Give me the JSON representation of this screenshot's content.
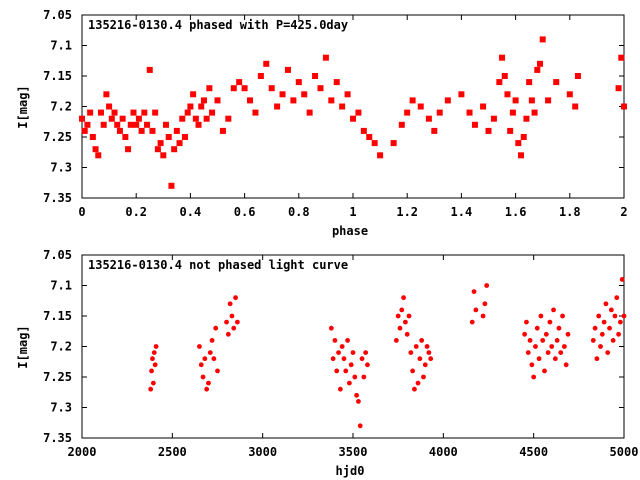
{
  "chart_data": [
    {
      "type": "scatter",
      "title": "135216-0130.4 phased with P=425.0day",
      "xlabel": "phase",
      "ylabel": "I[mag]",
      "xlim": [
        0,
        2
      ],
      "ylim": [
        7.35,
        7.05
      ],
      "y_inverted": true,
      "xticks": [
        "0",
        "0.2",
        "0.4",
        "0.6",
        "0.8",
        "1",
        "1.2",
        "1.4",
        "1.6",
        "1.8",
        "2"
      ],
      "yticks": [
        "7.05",
        "7.1",
        "7.15",
        "7.2",
        "7.25",
        "7.3",
        "7.35"
      ],
      "marker": "filled-square",
      "color": "#ff0000",
      "grid": false,
      "series": [
        {
          "x": [
            0.0,
            0.01,
            0.02,
            0.03,
            0.04,
            0.05,
            0.06,
            0.07,
            0.08,
            0.09,
            0.1,
            0.11,
            0.12,
            0.13,
            0.14,
            0.15,
            0.16,
            0.17,
            0.18,
            0.19,
            0.2,
            0.21,
            0.22,
            0.23,
            0.24,
            0.25,
            0.26,
            0.27,
            0.28,
            0.29,
            0.3,
            0.31,
            0.32,
            0.33,
            0.34,
            0.35,
            0.36,
            0.37,
            0.38,
            0.39,
            0.4,
            0.41,
            0.42,
            0.43,
            0.44,
            0.45,
            0.46,
            0.47,
            0.48,
            0.5,
            0.52,
            0.54,
            0.56,
            0.58,
            0.6,
            0.62,
            0.64,
            0.66,
            0.68,
            0.7,
            0.72,
            0.74,
            0.76,
            0.78,
            0.8,
            0.82,
            0.84,
            0.86,
            0.88,
            0.9,
            0.92,
            0.94,
            0.96,
            0.98,
            1.0,
            1.02,
            1.04,
            1.06,
            1.08,
            1.1,
            1.15,
            1.18,
            1.2,
            1.22,
            1.25,
            1.28,
            1.3,
            1.32,
            1.35,
            1.4,
            1.43,
            1.45,
            1.48,
            1.5,
            1.52,
            1.54,
            1.55,
            1.56,
            1.57,
            1.58,
            1.59,
            1.6,
            1.61,
            1.62,
            1.63,
            1.64,
            1.65,
            1.66,
            1.67,
            1.68,
            1.69,
            1.7,
            1.72,
            1.75,
            1.8,
            1.82,
            1.83,
            1.98,
            1.99,
            2.0
          ],
          "y": [
            7.22,
            7.24,
            7.23,
            7.21,
            7.25,
            7.27,
            7.28,
            7.21,
            7.23,
            7.18,
            7.2,
            7.22,
            7.21,
            7.23,
            7.24,
            7.22,
            7.25,
            7.27,
            7.23,
            7.21,
            7.23,
            7.22,
            7.24,
            7.21,
            7.23,
            7.14,
            7.24,
            7.21,
            7.27,
            7.26,
            7.28,
            7.23,
            7.25,
            7.33,
            7.27,
            7.24,
            7.26,
            7.22,
            7.25,
            7.21,
            7.2,
            7.18,
            7.22,
            7.23,
            7.2,
            7.19,
            7.22,
            7.17,
            7.21,
            7.19,
            7.24,
            7.22,
            7.17,
            7.16,
            7.17,
            7.19,
            7.21,
            7.15,
            7.13,
            7.17,
            7.2,
            7.18,
            7.14,
            7.19,
            7.16,
            7.18,
            7.21,
            7.15,
            7.17,
            7.12,
            7.19,
            7.16,
            7.2,
            7.18,
            7.22,
            7.21,
            7.24,
            7.25,
            7.26,
            7.28,
            7.26,
            7.23,
            7.21,
            7.19,
            7.2,
            7.22,
            7.24,
            7.21,
            7.19,
            7.18,
            7.21,
            7.23,
            7.2,
            7.24,
            7.22,
            7.16,
            7.12,
            7.15,
            7.18,
            7.24,
            7.21,
            7.19,
            7.26,
            7.28,
            7.25,
            7.22,
            7.16,
            7.19,
            7.21,
            7.14,
            7.13,
            7.09,
            7.19,
            7.16,
            7.18,
            7.2,
            7.15,
            7.17,
            7.12,
            7.2
          ]
        }
      ]
    },
    {
      "type": "scatter",
      "title": "135216-0130.4 not phased light curve",
      "xlabel": "hjd0",
      "ylabel": "I[mag]",
      "xlim": [
        2000,
        5000
      ],
      "ylim": [
        7.35,
        7.05
      ],
      "y_inverted": true,
      "xticks": [
        "2000",
        "2500",
        "3000",
        "3500",
        "4000",
        "4500",
        "5000"
      ],
      "yticks": [
        "7.05",
        "7.1",
        "7.15",
        "7.2",
        "7.25",
        "7.3",
        "7.35"
      ],
      "marker": "small-dot",
      "color": "#ff0000",
      "grid": false,
      "series": [
        {
          "x": [
            2380,
            2385,
            2390,
            2395,
            2400,
            2405,
            2410,
            2650,
            2660,
            2670,
            2680,
            2690,
            2700,
            2710,
            2720,
            2730,
            2740,
            2750,
            2800,
            2810,
            2820,
            2830,
            2840,
            2850,
            2860,
            3380,
            3390,
            3400,
            3410,
            3420,
            3430,
            3440,
            3450,
            3460,
            3470,
            3480,
            3490,
            3500,
            3510,
            3520,
            3530,
            3540,
            3550,
            3560,
            3570,
            3580,
            3740,
            3750,
            3760,
            3770,
            3780,
            3790,
            3800,
            3810,
            3820,
            3830,
            3840,
            3850,
            3860,
            3870,
            3880,
            3890,
            3900,
            3910,
            3920,
            3930,
            4160,
            4170,
            4180,
            4220,
            4230,
            4240,
            4450,
            4460,
            4470,
            4480,
            4490,
            4500,
            4510,
            4520,
            4530,
            4540,
            4550,
            4560,
            4570,
            4580,
            4590,
            4600,
            4610,
            4620,
            4630,
            4640,
            4650,
            4660,
            4670,
            4680,
            4690,
            4830,
            4840,
            4850,
            4860,
            4870,
            4880,
            4890,
            4900,
            4910,
            4920,
            4930,
            4940,
            4950,
            4960,
            4970,
            4980,
            4990,
            5000
          ],
          "y": [
            7.27,
            7.24,
            7.22,
            7.26,
            7.21,
            7.23,
            7.2,
            7.2,
            7.23,
            7.25,
            7.22,
            7.27,
            7.26,
            7.21,
            7.19,
            7.22,
            7.17,
            7.24,
            7.16,
            7.18,
            7.13,
            7.15,
            7.17,
            7.12,
            7.16,
            7.17,
            7.22,
            7.19,
            7.24,
            7.21,
            7.27,
            7.2,
            7.22,
            7.24,
            7.19,
            7.26,
            7.23,
            7.21,
            7.25,
            7.28,
            7.29,
            7.33,
            7.22,
            7.25,
            7.21,
            7.23,
            7.19,
            7.15,
            7.17,
            7.14,
            7.12,
            7.16,
            7.18,
            7.15,
            7.21,
            7.24,
            7.27,
            7.2,
            7.26,
            7.22,
            7.19,
            7.25,
            7.23,
            7.2,
            7.21,
            7.22,
            7.16,
            7.11,
            7.14,
            7.15,
            7.13,
            7.1,
            7.18,
            7.16,
            7.21,
            7.19,
            7.23,
            7.25,
            7.2,
            7.17,
            7.22,
            7.15,
            7.19,
            7.24,
            7.18,
            7.21,
            7.16,
            7.2,
            7.14,
            7.22,
            7.19,
            7.17,
            7.21,
            7.15,
            7.2,
            7.23,
            7.18,
            7.19,
            7.17,
            7.22,
            7.15,
            7.2,
            7.18,
            7.16,
            7.13,
            7.21,
            7.17,
            7.14,
            7.19,
            7.15,
            7.12,
            7.18,
            7.16,
            7.09,
            7.15
          ]
        }
      ]
    }
  ]
}
